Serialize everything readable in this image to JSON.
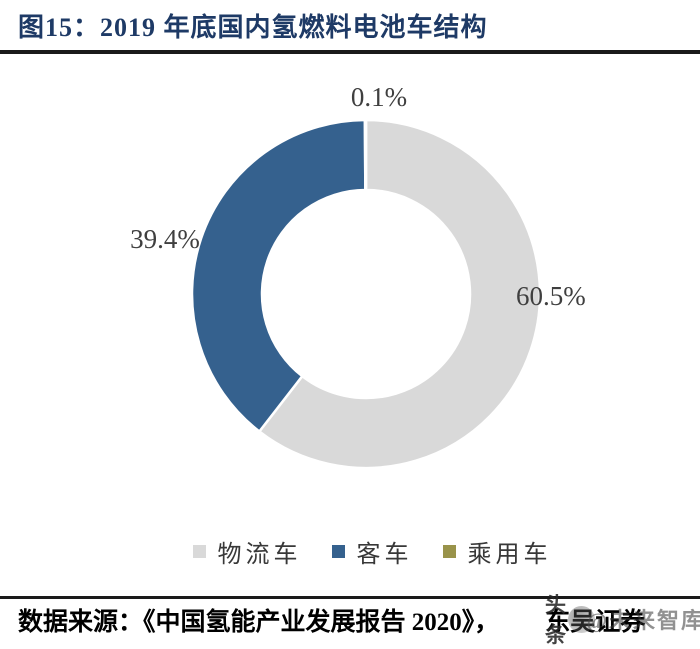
{
  "header": {
    "title": "图15：2019 年底国内氢燃料电池车结构"
  },
  "chart_data": {
    "type": "pie",
    "subtype": "donut",
    "title": "2019 年底国内氢燃料电池车结构",
    "direction": "clockwise",
    "start_angle_deg": 0,
    "inner_radius_ratio": 0.6,
    "legend_position": "bottom",
    "slices": [
      {
        "name": "物流车",
        "value": 60.5,
        "label": "60.5%",
        "color": "#D9D9D9"
      },
      {
        "name": "客车",
        "value": 39.4,
        "label": "39.4%",
        "color": "#35618E"
      },
      {
        "name": "乘用车",
        "value": 0.1,
        "label": "0.1%",
        "color": "#99934A"
      }
    ]
  },
  "source": {
    "prefix": "数据来源：《中国氢能产业发展报告 2020》，",
    "publisher": "东吴证券"
  },
  "watermark": {
    "badge": "头条",
    "name": "@未来智库"
  },
  "colors": {
    "title_navy": "#1E3A66",
    "divider_black": "#1a1a1a",
    "label_gray": "#3F3F3F"
  }
}
